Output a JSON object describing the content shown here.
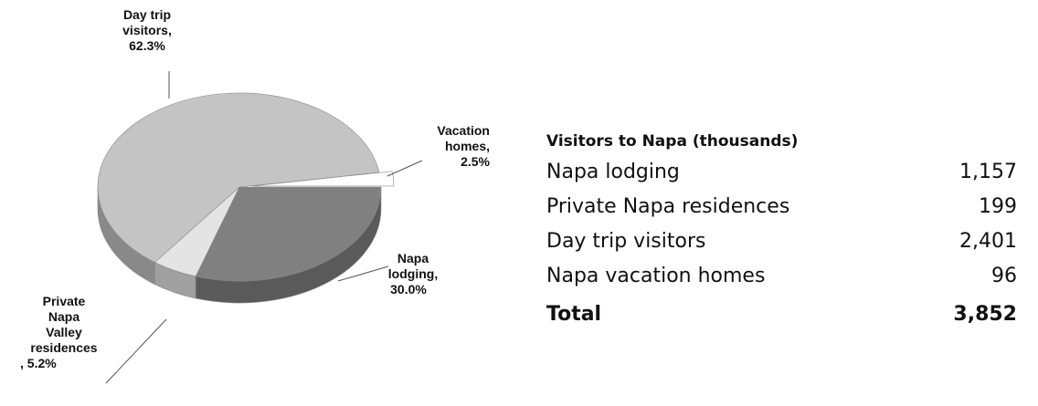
{
  "chart_data": {
    "type": "pie",
    "categories": [
      "Napa lodging,",
      "Private Napa Valley residences",
      "Day trip visitors,",
      "Vacation homes,"
    ],
    "values": [
      30.0,
      5.2,
      62.3,
      2.5
    ],
    "value_labels": [
      "30.0%",
      ", 5.2%",
      "62.3%",
      "2.5%"
    ],
    "colors": [
      "#808080",
      "#e4e4e4",
      "#c4c4c4",
      "#ffffff"
    ]
  },
  "table": {
    "title": "Visitors to Napa (thousands)",
    "rows": [
      [
        "Napa lodging",
        "1,157"
      ],
      [
        "Private Napa residences",
        "199"
      ],
      [
        "Day trip visitors",
        "2,401"
      ],
      [
        "Napa vacation homes",
        "96"
      ]
    ],
    "total": [
      "Total",
      "3,852"
    ]
  }
}
